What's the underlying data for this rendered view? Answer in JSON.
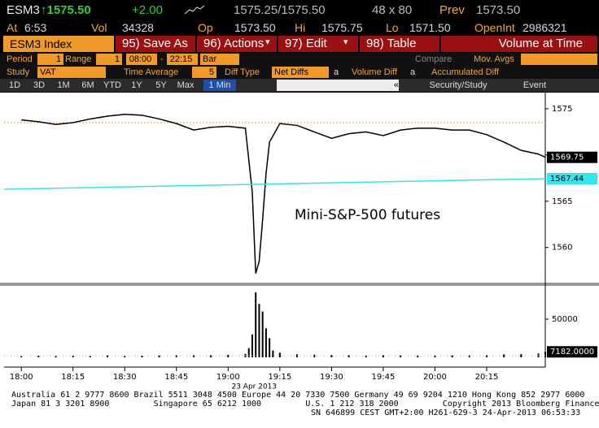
{
  "header": {
    "ticker": "ESM3",
    "last": "↑1575.50",
    "change": "+2.00",
    "bid_ask": "1575.25/1575.50",
    "size": "48 x 80",
    "prev_label": "Prev",
    "prev": "1573.50",
    "time_label": "At",
    "time": "6:53",
    "vol_label": "Vol",
    "vol": "34328",
    "op_label": "Op",
    "op": "1573.50",
    "hi_label": "Hi",
    "hi": "1575.75",
    "lo_label": "Lo",
    "lo": "1571.50",
    "oi_label": "OpenInt",
    "oi": "2986321"
  },
  "toolbar": {
    "security": "ESM3 Index",
    "buttons": [
      "95) Save As",
      "96) Actions",
      "97) Edit",
      "98) Table"
    ],
    "title": "Volume at Time"
  },
  "settings": {
    "period_label": "Period",
    "period": "1",
    "range_label": "Range",
    "range": "1",
    "start": "08:00",
    "dash": "-",
    "end": "22:15",
    "bar": "Bar",
    "compare": "Compare",
    "mov_avgs": "Mov. Avgs",
    "study_label": "Study",
    "study": "VAT",
    "time_avg_label": "Time Average",
    "time_avg": "5",
    "diff_label": "Diff Type",
    "diff": "Net Diffs",
    "a1": "a",
    "vol_diff": "Volume Diff",
    "a2": "a",
    "acc_diff": "Accumulated Diff"
  },
  "tabs": {
    "periods": [
      "1D",
      "3D",
      "1M",
      "6M",
      "YTD",
      "1Y",
      "5Y",
      "Max"
    ],
    "interval": "1 Min",
    "collapse": "«",
    "security_study": "Security/Study",
    "event": "Event"
  },
  "chart_data": [
    {
      "type": "line",
      "annotation": "Mini-S&P-500 futures",
      "date_label": "23 Apr 2013",
      "xlim": [
        "17:55",
        "20:32"
      ],
      "xticks": [
        "18:00",
        "18:15",
        "18:30",
        "18:45",
        "19:00",
        "19:15",
        "19:30",
        "19:45",
        "20:00",
        "20:15"
      ],
      "ylim": [
        1556.2,
        1576.75
      ],
      "yticks": [
        1560,
        1565,
        1570,
        1575
      ],
      "reference_line": 1573.5,
      "reference_color": "#f0a020",
      "series": [
        {
          "color": "#000000",
          "x": [
            "18:00",
            "18:05",
            "18:10",
            "18:15",
            "18:20",
            "18:25",
            "18:30",
            "18:35",
            "18:40",
            "18:45",
            "18:50",
            "18:55",
            "19:00",
            "19:05",
            "19:07",
            "19:08",
            "19:09",
            "19:10",
            "19:11",
            "19:12",
            "19:15",
            "19:20",
            "19:25",
            "19:30",
            "19:35",
            "19:40",
            "19:45",
            "19:50",
            "19:55",
            "20:00",
            "20:05",
            "20:10",
            "20:15",
            "20:20",
            "20:25",
            "20:30",
            "20:32"
          ],
          "values": [
            1573.8,
            1573.6,
            1573.3,
            1573.5,
            1573.9,
            1574.2,
            1574.4,
            1574.3,
            1573.9,
            1573.4,
            1572.7,
            1573.0,
            1573.1,
            1572.9,
            1566.0,
            1557.2,
            1558.5,
            1563.0,
            1568.0,
            1571.4,
            1573.4,
            1573.2,
            1572.5,
            1571.8,
            1572.3,
            1572.5,
            1572.1,
            1572.7,
            1572.9,
            1572.9,
            1572.7,
            1572.7,
            1572.2,
            1571.4,
            1570.5,
            1570.1,
            1569.75
          ],
          "value_labels": [
            null,
            null,
            null,
            null,
            null,
            null,
            null,
            null,
            null,
            null,
            null,
            null,
            null,
            null,
            null,
            null,
            null,
            null,
            null,
            null,
            null,
            null,
            null,
            null,
            null,
            null,
            null,
            null,
            null,
            null,
            null,
            null,
            null,
            null,
            null,
            null,
            "1569.75"
          ]
        },
        {
          "color": "#33e6f0",
          "x": [
            "17:55",
            "20:32"
          ],
          "values": [
            1566.3,
            1567.44
          ],
          "value_labels": [
            null,
            "1567.44"
          ]
        }
      ]
    },
    {
      "type": "bar",
      "color": "#000000",
      "ylim": [
        0,
        93600
      ],
      "yticks": [
        50000
      ],
      "x": [
        "18:00",
        "18:05",
        "18:10",
        "18:15",
        "18:20",
        "18:25",
        "18:30",
        "18:35",
        "18:40",
        "18:45",
        "18:50",
        "18:55",
        "19:00",
        "19:05",
        "19:06",
        "19:07",
        "19:08",
        "19:09",
        "19:10",
        "19:11",
        "19:12",
        "19:13",
        "19:15",
        "19:20",
        "19:25",
        "19:30",
        "19:35",
        "19:40",
        "19:45",
        "19:50",
        "19:55",
        "20:00",
        "20:05",
        "20:10",
        "20:15",
        "20:20",
        "20:25",
        "20:30",
        "20:32"
      ],
      "values": [
        1500,
        2000,
        1800,
        2200,
        1600,
        2500,
        1900,
        2100,
        2400,
        2800,
        3000,
        2600,
        3200,
        4500,
        12000,
        30000,
        85000,
        70000,
        60000,
        38000,
        25000,
        9000,
        6000,
        4000,
        3500,
        3000,
        2800,
        2500,
        2600,
        2400,
        2700,
        2300,
        2500,
        2600,
        3000,
        3800,
        4200,
        5000,
        7182
      ],
      "value_labels": [
        null,
        null,
        null,
        null,
        null,
        null,
        null,
        null,
        null,
        null,
        null,
        null,
        null,
        null,
        null,
        null,
        null,
        null,
        null,
        null,
        null,
        null,
        null,
        null,
        null,
        null,
        null,
        null,
        null,
        null,
        null,
        null,
        null,
        null,
        null,
        null,
        null,
        null,
        "7182.0000"
      ]
    }
  ],
  "footer": {
    "lines": [
      "Australia 61 2 9777 8600 Brazil 5511 3048 4500 Europe 44 20 7330 7500 Germany 49 69 9204 1210 Hong Kong 852 2977 6000",
      "Japan 81 3 3201 8900         Singapore 65 6212 1000         U.S. 1 212 318 2000         Copyright 2013 Bloomberg Finance L.P.",
      "SN 646899 CEST GMT+2:00 H261-629-3 24-Apr-2013 06:53:33"
    ]
  }
}
